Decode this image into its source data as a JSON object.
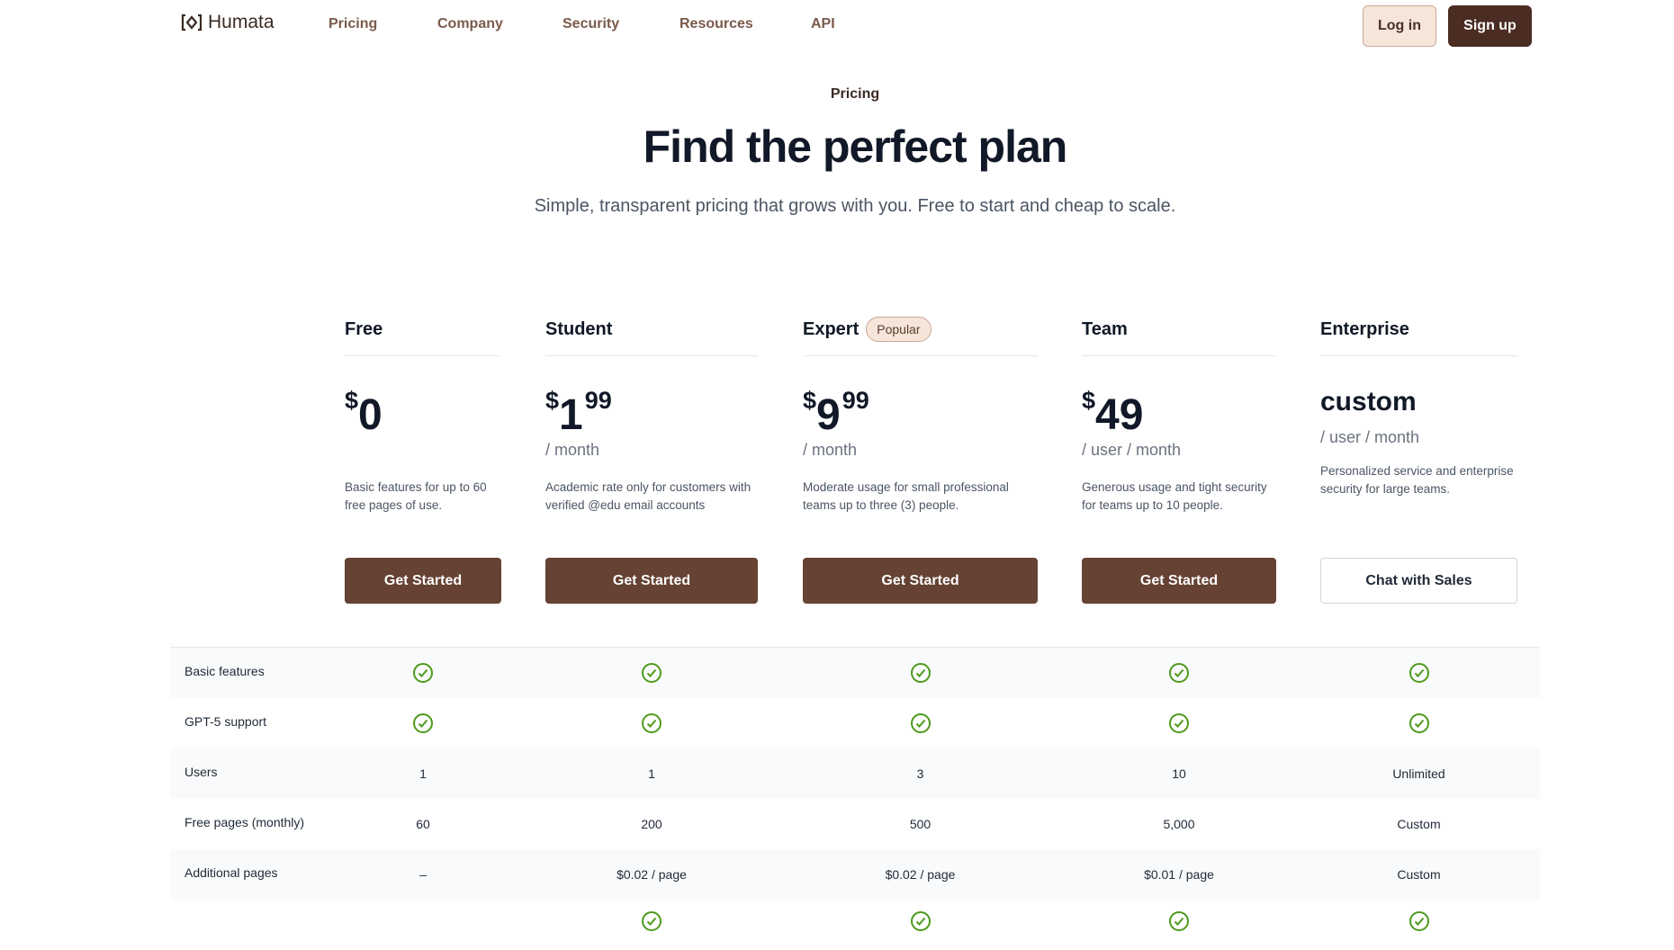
{
  "nav": {
    "brand": "Humata",
    "links": [
      "Pricing",
      "Company",
      "Security",
      "Resources",
      "API"
    ],
    "login": "Log in",
    "signup": "Sign up"
  },
  "hero": {
    "eyebrow": "Pricing",
    "title": "Find the perfect plan",
    "subtitle": "Simple, transparent pricing that grows with you. Free to start and cheap to scale."
  },
  "plans": [
    {
      "name": "Free",
      "currency": "$",
      "amount": "0",
      "cents": "",
      "per": "",
      "desc": "Basic features for up to 60 free pages of use.",
      "cta": "Get Started"
    },
    {
      "name": "Student",
      "currency": "$",
      "amount": "1",
      "cents": "99",
      "per": "/ month",
      "desc": "Academic rate only for customers with verified @edu email accounts",
      "cta": "Get Started"
    },
    {
      "name": "Expert",
      "badge": "Popular",
      "currency": "$",
      "amount": "9",
      "cents": "99",
      "per": "/ month",
      "desc": "Moderate usage for small professional teams up to three (3) people.",
      "cta": "Get Started"
    },
    {
      "name": "Team",
      "currency": "$",
      "amount": "49",
      "cents": "",
      "per": "/ user / month",
      "desc": "Generous usage and tight security for teams up to 10 people.",
      "cta": "Get Started"
    },
    {
      "name": "Enterprise",
      "custom": "custom",
      "per": "/ user / month",
      "desc": "Personalized service and enterprise security for large teams.",
      "cta": "Chat with Sales"
    }
  ],
  "features": [
    {
      "label": "Basic features",
      "values": [
        "check",
        "check",
        "check",
        "check",
        "check"
      ]
    },
    {
      "label": "GPT-5 support",
      "values": [
        "check",
        "check",
        "check",
        "check",
        "check"
      ]
    },
    {
      "label": "Users",
      "values": [
        "1",
        "1",
        "3",
        "10",
        "Unlimited"
      ]
    },
    {
      "label": "Free pages (monthly)",
      "values": [
        "60",
        "200",
        "500",
        "5,000",
        "Custom"
      ]
    },
    {
      "label": "Additional pages",
      "values": [
        "–",
        "$0.02 / page",
        "$0.02 / page",
        "$0.01 / page",
        "Custom"
      ]
    }
  ],
  "colors": {
    "brand": "#4a2c22",
    "cta": "#654233",
    "check": "#4d9a1c"
  }
}
